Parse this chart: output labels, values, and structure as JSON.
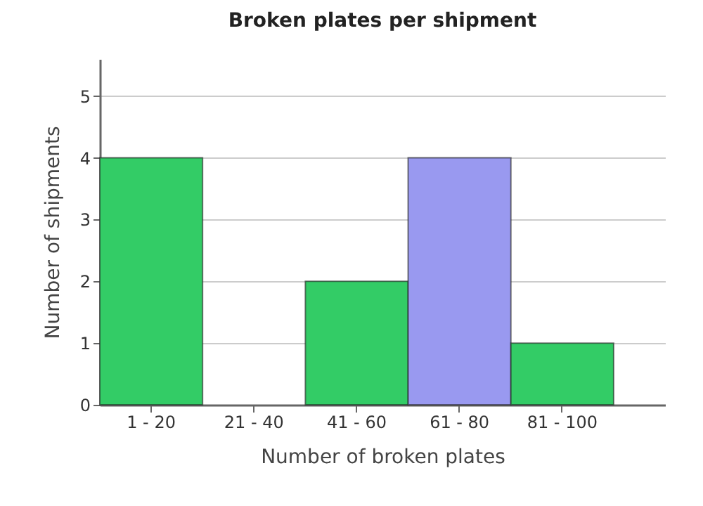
{
  "chart_data": {
    "type": "bar",
    "title": "Broken plates per shipment",
    "xlabel": "Number of broken plates",
    "ylabel": "Number of shipments",
    "categories": [
      "1 - 20",
      "21 - 40",
      "41 - 60",
      "61 - 80",
      "81 - 100"
    ],
    "values": [
      4,
      0,
      2,
      4,
      1
    ],
    "colors": [
      "#33cc66",
      "#33cc66",
      "#33cc66",
      "#9999f0",
      "#33cc66"
    ],
    "ylim": [
      0,
      5.6
    ],
    "yticks": [
      0,
      1,
      2,
      3,
      4,
      5
    ],
    "grid": "y"
  }
}
